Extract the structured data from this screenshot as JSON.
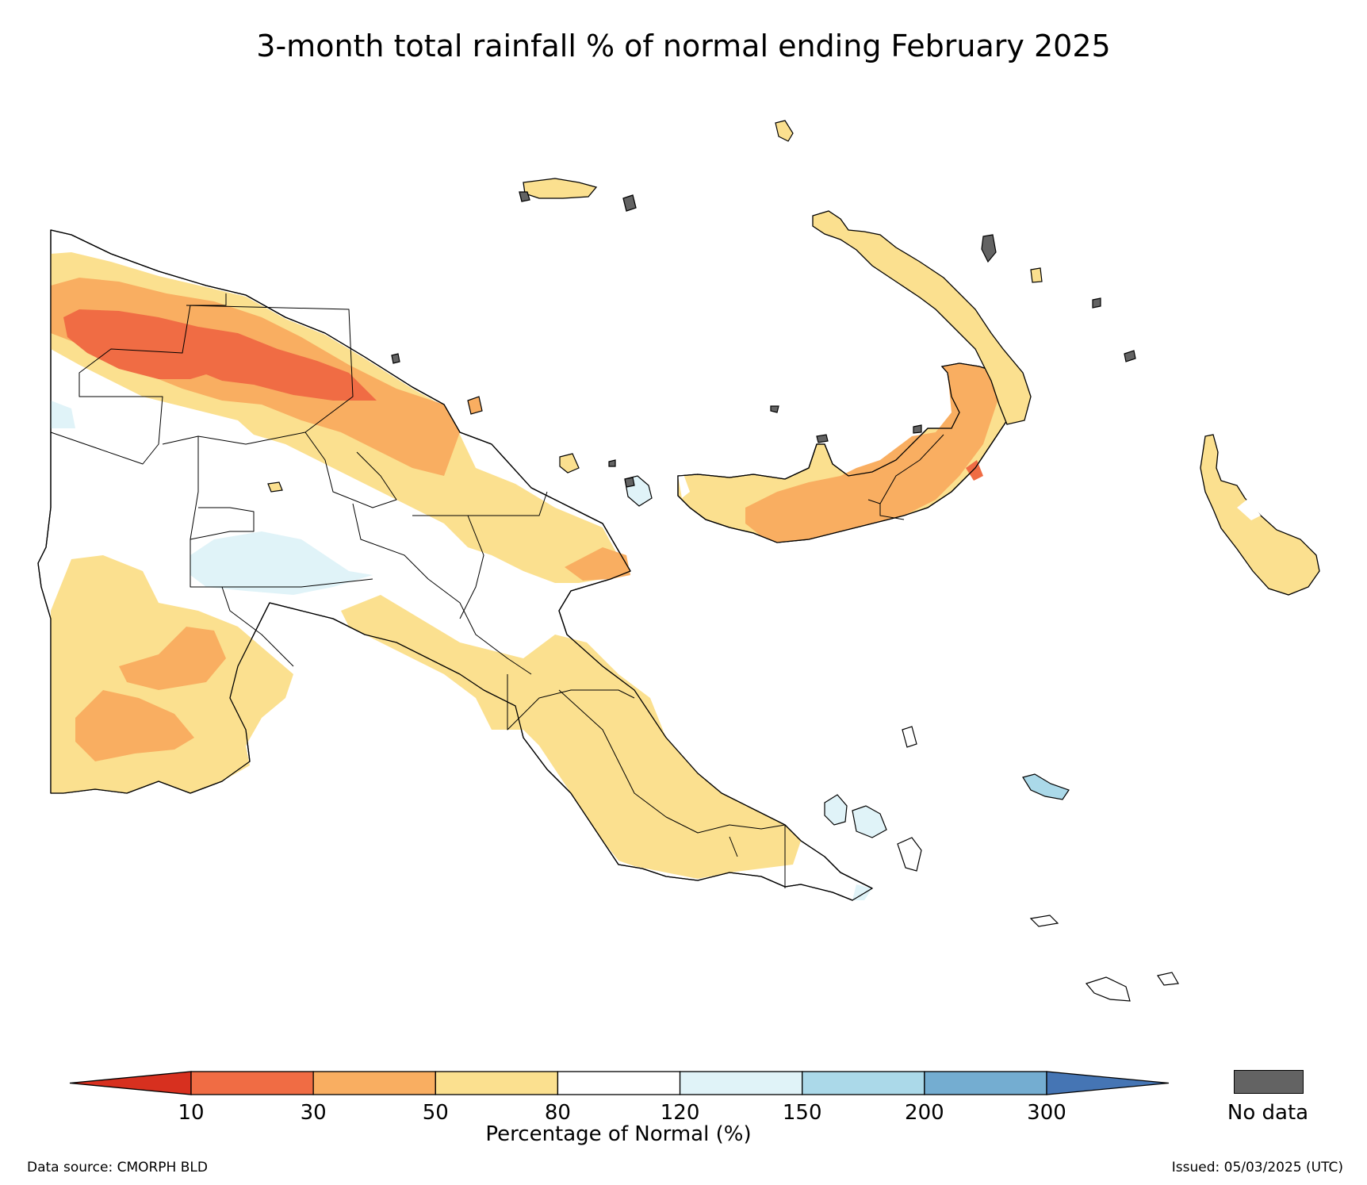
{
  "title": "3-month total rainfall % of normal ending February 2025",
  "colorbar": {
    "title": "Percentage of Normal (%)",
    "ticks": [
      "10",
      "30",
      "50",
      "80",
      "120",
      "150",
      "200",
      "300"
    ],
    "colors": [
      "#d7301f",
      "#f06c44",
      "#f9ae61",
      "#fbe08f",
      "#ffffff",
      "#e0f3f8",
      "#abd9e9",
      "#74add1",
      "#4575b4"
    ],
    "nodata_label": "No data",
    "nodata_color": "#636363"
  },
  "footer": {
    "source": "Data source: CMORPH BLD",
    "issued": "Issued: 05/03/2025 (UTC)"
  },
  "map": {
    "region": "Papua New Guinea",
    "categories": [
      {
        "range": "<10",
        "color": "#d7301f"
      },
      {
        "range": "10-30",
        "color": "#f06c44"
      },
      {
        "range": "30-50",
        "color": "#f9ae61"
      },
      {
        "range": "50-80",
        "color": "#fbe08f"
      },
      {
        "range": "80-120",
        "color": "#ffffff"
      },
      {
        "range": "120-150",
        "color": "#e0f3f8"
      },
      {
        "range": "150-200",
        "color": "#abd9e9"
      },
      {
        "range": "200-300",
        "color": "#74add1"
      },
      {
        "range": ">300",
        "color": "#4575b4"
      }
    ]
  }
}
